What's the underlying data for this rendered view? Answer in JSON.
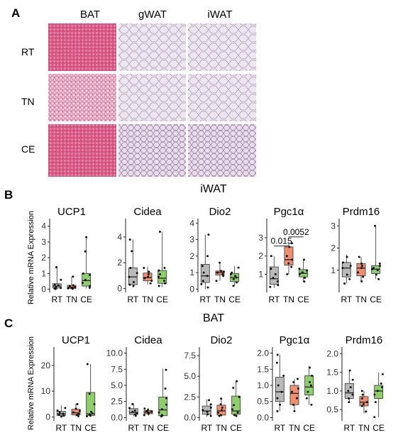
{
  "panels": {
    "a": {
      "letter": "A",
      "col_labels": [
        "BAT",
        "gWAT",
        "iWAT"
      ],
      "row_labels": [
        "RT",
        "TN",
        "CE"
      ]
    },
    "b": {
      "letter": "B",
      "title": "iWAT"
    },
    "c": {
      "letter": "C",
      "title": "BAT"
    }
  },
  "y_label": "Relative mRNA Expression",
  "groups": [
    "RT",
    "TN",
    "CE"
  ],
  "group_colors": {
    "RT": "#b9b9b9",
    "TN": "#f08f6c",
    "CE": "#8fcf6a"
  },
  "chart_data": [
    {
      "panel": "B",
      "type": "box",
      "title": "UCP1",
      "categories": [
        "RT",
        "TN",
        "CE"
      ],
      "ylim": [
        -0.2,
        4.3
      ],
      "yticks": [
        0,
        1,
        2,
        3,
        4
      ],
      "boxes": [
        {
          "min": 0,
          "q1": 0.08,
          "median": 0.2,
          "q3": 0.35,
          "max": 1.4,
          "points": [
            0.02,
            0.05,
            0.08,
            0.15,
            0.25,
            0.3,
            0.6,
            1.4
          ]
        },
        {
          "min": 0,
          "q1": 0.05,
          "median": 0.12,
          "q3": 0.25,
          "max": 0.8,
          "points": [
            0.03,
            0.06,
            0.1,
            0.14,
            0.2,
            0.25,
            0.8
          ]
        },
        {
          "min": 0.05,
          "q1": 0.2,
          "median": 0.55,
          "q3": 1.0,
          "max": 3.3,
          "points": [
            0.1,
            0.2,
            0.4,
            0.6,
            0.9,
            1.0,
            2.4,
            3.3
          ]
        }
      ]
    },
    {
      "panel": "B",
      "type": "box",
      "title": "Cidea",
      "categories": [
        "RT",
        "TN",
        "CE"
      ],
      "ylim": [
        -0.3,
        5.2
      ],
      "yticks": [
        0,
        2,
        4
      ],
      "boxes": [
        {
          "min": 0.1,
          "q1": 0.3,
          "median": 0.9,
          "q3": 1.6,
          "max": 3.8,
          "points": [
            0.2,
            0.3,
            0.5,
            0.9,
            1.2,
            1.6,
            2.9,
            3.8
          ]
        },
        {
          "min": 0.3,
          "q1": 0.6,
          "median": 0.85,
          "q3": 1.2,
          "max": 1.7,
          "points": [
            0.4,
            0.6,
            0.8,
            0.9,
            1.1,
            1.3,
            1.6
          ]
        },
        {
          "min": 0.1,
          "q1": 0.4,
          "median": 0.8,
          "q3": 1.4,
          "max": 4.4,
          "points": [
            0.2,
            0.4,
            0.6,
            0.9,
            1.1,
            1.4,
            1.6,
            4.4
          ]
        }
      ]
    },
    {
      "panel": "B",
      "type": "box",
      "title": "Dio2",
      "categories": [
        "RT",
        "TN",
        "CE"
      ],
      "ylim": [
        -0.2,
        4.1
      ],
      "yticks": [
        0,
        1,
        2,
        3,
        4
      ],
      "boxes": [
        {
          "min": 0,
          "q1": 0.4,
          "median": 0.8,
          "q3": 1.5,
          "max": 3.3,
          "points": [
            0.1,
            0.3,
            0.5,
            0.8,
            1.0,
            1.4,
            2.0,
            3.3
          ]
        },
        {
          "min": 0.5,
          "q1": 0.85,
          "median": 1.0,
          "q3": 1.1,
          "max": 1.6,
          "points": [
            0.5,
            0.8,
            0.9,
            1.0,
            1.05,
            1.1,
            1.6
          ]
        },
        {
          "min": 0.2,
          "q1": 0.45,
          "median": 0.7,
          "q3": 0.95,
          "max": 1.4,
          "points": [
            0.2,
            0.4,
            0.6,
            0.7,
            0.8,
            0.9,
            1.0,
            1.3
          ]
        }
      ]
    },
    {
      "panel": "B",
      "type": "box",
      "title": "Pgc1α",
      "categories": [
        "RT",
        "TN",
        "CE"
      ],
      "ylim": [
        0,
        3.9
      ],
      "yticks": [
        1,
        2,
        3
      ],
      "pvalues": [
        {
          "from": 0,
          "to": 1,
          "label": "0.015",
          "y": 2.55
        },
        {
          "from": 1,
          "to": 2,
          "label": "0.0052",
          "y": 3.05
        }
      ],
      "boxes": [
        {
          "min": 0.25,
          "q1": 0.45,
          "median": 0.75,
          "q3": 1.4,
          "max": 2.0,
          "points": [
            0.3,
            0.4,
            0.6,
            0.8,
            1.0,
            1.3,
            2.0
          ]
        },
        {
          "min": 1.0,
          "q1": 1.5,
          "median": 1.8,
          "q3": 2.5,
          "max": 2.7,
          "points": [
            1.0,
            1.4,
            1.6,
            1.8,
            2.0,
            2.5,
            2.7
          ]
        },
        {
          "min": 0.6,
          "q1": 0.85,
          "median": 1.05,
          "q3": 1.25,
          "max": 1.8,
          "points": [
            0.6,
            0.8,
            1.0,
            1.1,
            1.2,
            1.3,
            1.8
          ]
        }
      ]
    },
    {
      "panel": "B",
      "type": "box",
      "title": "Prdm16",
      "categories": [
        "RT",
        "TN",
        "CE"
      ],
      "ylim": [
        0,
        3.2
      ],
      "yticks": [
        1,
        2,
        3
      ],
      "boxes": [
        {
          "min": 0.4,
          "q1": 0.7,
          "median": 1.1,
          "q3": 1.35,
          "max": 1.7,
          "points": [
            0.4,
            0.6,
            0.8,
            1.1,
            1.2,
            1.35,
            1.6
          ]
        },
        {
          "min": 0.5,
          "q1": 0.75,
          "median": 1.1,
          "q3": 1.3,
          "max": 1.6,
          "points": [
            0.5,
            0.7,
            0.9,
            1.1,
            1.2,
            1.3,
            1.6
          ]
        },
        {
          "min": 0.6,
          "q1": 0.85,
          "median": 1.05,
          "q3": 1.2,
          "max": 3.0,
          "points": [
            0.6,
            0.8,
            1.0,
            1.05,
            1.1,
            1.2,
            1.3,
            3.0
          ]
        }
      ]
    },
    {
      "panel": "C",
      "type": "box",
      "title": "UCP1",
      "categories": [
        "RT",
        "TN",
        "CE"
      ],
      "ylim": [
        -1.5,
        26
      ],
      "yticks": [
        0,
        10,
        20
      ],
      "boxes": [
        {
          "min": 0,
          "q1": 0.5,
          "median": 1.2,
          "q3": 2.2,
          "max": 4.5,
          "points": [
            0.2,
            0.5,
            0.9,
            1.3,
            1.8,
            2.5,
            3.5
          ]
        },
        {
          "min": 0.2,
          "q1": 0.8,
          "median": 1.6,
          "q3": 3.0,
          "max": 5.2,
          "points": [
            0.3,
            0.8,
            1.2,
            1.8,
            2.4,
            3.2,
            5.0
          ]
        },
        {
          "min": 0.2,
          "q1": 0.6,
          "median": 1.2,
          "q3": 9.5,
          "max": 20.5,
          "points": [
            0.3,
            0.5,
            0.9,
            1.4,
            2.0,
            5.0,
            9.0,
            20.5
          ]
        }
      ]
    },
    {
      "panel": "C",
      "type": "box",
      "title": "Cidea",
      "categories": [
        "RT",
        "TN",
        "CE"
      ],
      "ylim": [
        -0.5,
        10.5
      ],
      "yticks": [
        0.0,
        2.5,
        5.0,
        7.5,
        10.0
      ],
      "boxes": [
        {
          "min": 0.2,
          "q1": 0.5,
          "median": 0.8,
          "q3": 1.4,
          "max": 2.2,
          "points": [
            0.3,
            0.5,
            0.7,
            0.9,
            1.1,
            1.5,
            2.1
          ]
        },
        {
          "min": 0.3,
          "q1": 0.6,
          "median": 0.85,
          "q3": 1.1,
          "max": 1.5,
          "points": [
            0.4,
            0.6,
            0.8,
            0.9,
            1.0,
            1.2,
            1.4
          ]
        },
        {
          "min": 0.1,
          "q1": 0.3,
          "median": 1.2,
          "q3": 3.2,
          "max": 7.6,
          "points": [
            0.2,
            0.4,
            0.8,
            1.3,
            2.0,
            3.0,
            4.5,
            7.4
          ]
        }
      ]
    },
    {
      "panel": "C",
      "type": "box",
      "title": "Dio2",
      "categories": [
        "RT",
        "TN",
        "CE"
      ],
      "ylim": [
        -0.4,
        8.2
      ],
      "yticks": [
        0.0,
        2.5,
        5.0,
        7.5
      ],
      "boxes": [
        {
          "min": 0.1,
          "q1": 0.4,
          "median": 0.8,
          "q3": 1.4,
          "max": 2.2,
          "points": [
            0.2,
            0.4,
            0.7,
            0.9,
            1.2,
            1.6,
            2.1
          ]
        },
        {
          "min": 0.1,
          "q1": 0.3,
          "median": 0.8,
          "q3": 1.5,
          "max": 2.4,
          "points": [
            0.2,
            0.3,
            0.6,
            0.9,
            1.2,
            1.6,
            2.3
          ]
        },
        {
          "min": 0.1,
          "q1": 0.4,
          "median": 0.8,
          "q3": 2.6,
          "max": 4.5,
          "points": [
            0.2,
            0.3,
            0.6,
            1.0,
            1.5,
            2.5,
            3.6,
            4.4
          ]
        }
      ]
    },
    {
      "panel": "C",
      "type": "box",
      "title": "Pgc1α",
      "categories": [
        "RT",
        "TN",
        "CE"
      ],
      "ylim": [
        -0.1,
        2.1
      ],
      "yticks": [
        0.0,
        0.5,
        1.0,
        1.5,
        2.0
      ],
      "boxes": [
        {
          "min": 0.2,
          "q1": 0.5,
          "median": 0.8,
          "q3": 1.25,
          "max": 1.95,
          "points": [
            0.2,
            0.4,
            0.6,
            0.8,
            1.0,
            1.3,
            1.7,
            1.95
          ]
        },
        {
          "min": 0.2,
          "q1": 0.4,
          "median": 0.75,
          "q3": 1.0,
          "max": 1.2,
          "points": [
            0.2,
            0.4,
            0.6,
            0.8,
            0.9,
            1.1,
            1.2
          ]
        },
        {
          "min": 0.4,
          "q1": 0.7,
          "median": 0.95,
          "q3": 1.3,
          "max": 1.6,
          "points": [
            0.4,
            0.6,
            0.8,
            1.0,
            1.1,
            1.3,
            1.55
          ]
        }
      ]
    },
    {
      "panel": "C",
      "type": "box",
      "title": "Prdm16",
      "categories": [
        "RT",
        "TN",
        "CE"
      ],
      "ylim": [
        0.2,
        2.1
      ],
      "yticks": [
        0.5,
        1.0,
        1.5,
        2.0
      ],
      "boxes": [
        {
          "min": 0.7,
          "q1": 0.8,
          "median": 0.95,
          "q3": 1.2,
          "max": 1.55,
          "points": [
            0.7,
            0.8,
            0.9,
            1.0,
            1.1,
            1.3,
            1.55
          ]
        },
        {
          "min": 0.4,
          "q1": 0.6,
          "median": 0.7,
          "q3": 0.85,
          "max": 1.0,
          "points": [
            0.45,
            0.6,
            0.65,
            0.7,
            0.8,
            0.9,
            1.0
          ]
        },
        {
          "min": 0.3,
          "q1": 0.8,
          "median": 1.0,
          "q3": 1.15,
          "max": 1.5,
          "points": [
            0.3,
            0.7,
            0.9,
            1.0,
            1.1,
            1.2,
            1.45
          ]
        }
      ]
    }
  ]
}
